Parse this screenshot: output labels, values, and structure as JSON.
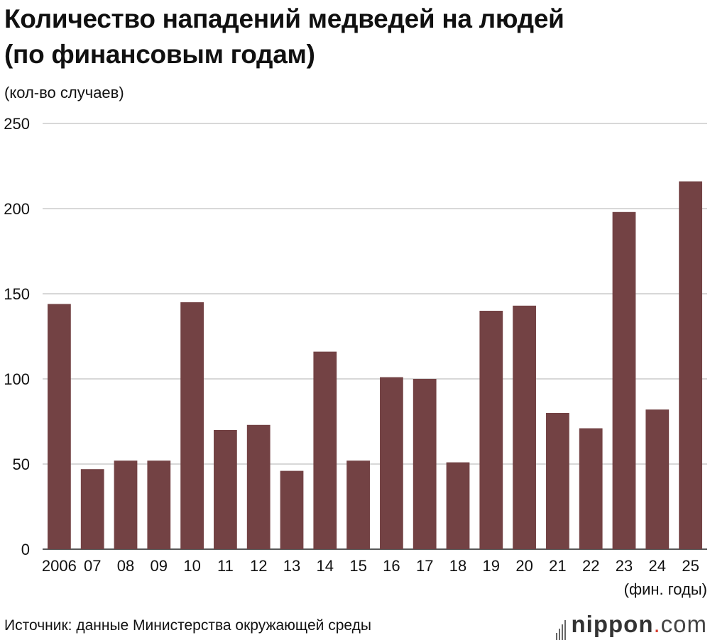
{
  "title_line1": "Количество нападений медведей на людей",
  "title_line2": "(по финансовым годам)",
  "source": "Источник: данные Министерства окружающей среды",
  "logo": {
    "name": "nippon",
    "dot": ".",
    "tld": "com"
  },
  "chart_data": {
    "type": "bar",
    "title": "Количество нападений медведей на людей (по финансовым годам)",
    "ylabel": "(кол-во случаев)",
    "xlabel": "(фин. годы)",
    "categories": [
      "2006",
      "07",
      "08",
      "09",
      "10",
      "11",
      "12",
      "13",
      "14",
      "15",
      "16",
      "17",
      "18",
      "19",
      "20",
      "21",
      "22",
      "23",
      "24",
      "25"
    ],
    "values": [
      144,
      47,
      52,
      52,
      145,
      70,
      73,
      46,
      116,
      52,
      101,
      100,
      51,
      140,
      143,
      80,
      71,
      198,
      82,
      216
    ],
    "ylim": [
      0,
      250
    ],
    "yticks": [
      0,
      50,
      100,
      150,
      200,
      250
    ],
    "grid": true,
    "bar_color": "#734244",
    "grid_color": "#cccccc"
  }
}
